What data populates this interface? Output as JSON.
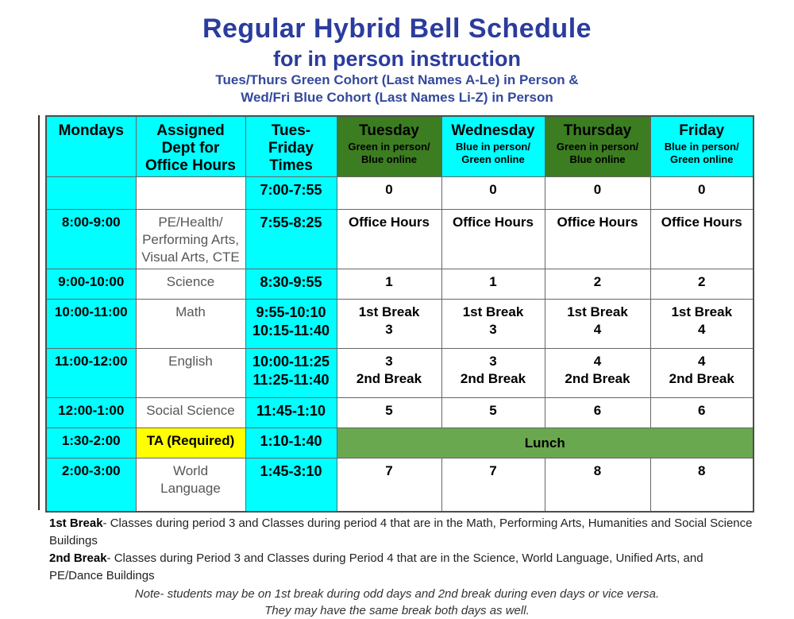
{
  "header": {
    "title": "Regular Hybrid Bell Schedule",
    "subtitle": "for in person instruction",
    "cohort_line1": "Tues/Thurs Green Cohort (Last Names A-Le) in Person &",
    "cohort_line2": "Wed/Fri Blue Cohort (Last Names Li-Z) in Person"
  },
  "colors": {
    "cell_cyan": "#00FFFF",
    "day_header_green": "#3C7D21",
    "lunch_green": "#6AA84F",
    "ta_yellow": "#FFFF00",
    "title_blue": "#2B3C9E",
    "cohort_blue": "#33499B"
  },
  "table": {
    "columns": [
      {
        "title_lines": [
          "Mondays"
        ],
        "subtitle_lines": [],
        "bg": "cyan"
      },
      {
        "title_lines": [
          "Assigned",
          "Dept for",
          "Office Hours"
        ],
        "subtitle_lines": [],
        "bg": "cyan"
      },
      {
        "title_lines": [
          "Tues-",
          "Friday",
          "Times"
        ],
        "subtitle_lines": [],
        "bg": "cyan"
      },
      {
        "title_lines": [
          "Tuesday"
        ],
        "subtitle_lines": [
          "Green in person/",
          "Blue online"
        ],
        "bg": "green"
      },
      {
        "title_lines": [
          "Wednesday"
        ],
        "subtitle_lines": [
          "Blue in person/",
          "Green online"
        ],
        "bg": "cyan"
      },
      {
        "title_lines": [
          "Thursday"
        ],
        "subtitle_lines": [
          "Green in person/",
          "Blue online"
        ],
        "bg": "green"
      },
      {
        "title_lines": [
          "Friday"
        ],
        "subtitle_lines": [
          "Blue in person/",
          "Green online"
        ],
        "bg": "cyan"
      }
    ],
    "rows": [
      {
        "monday": "",
        "dept_lines": [],
        "dept_bg": "white",
        "times_lines": [
          "7:00-7:55"
        ],
        "day_cells": [
          [
            "0"
          ],
          [
            "0"
          ],
          [
            "0"
          ],
          [
            "0"
          ]
        ]
      },
      {
        "monday": "8:00-9:00",
        "dept_lines": [
          "PE/Health/",
          "Performing Arts,",
          "Visual Arts, CTE"
        ],
        "dept_bg": "white",
        "times_lines": [
          "7:55-8:25"
        ],
        "day_cells": [
          [
            "Office Hours"
          ],
          [
            "Office Hours"
          ],
          [
            "Office Hours"
          ],
          [
            "Office Hours"
          ]
        ]
      },
      {
        "monday": "9:00-10:00",
        "dept_lines": [
          "Science"
        ],
        "dept_bg": "white",
        "times_lines": [
          "8:30-9:55"
        ],
        "day_cells": [
          [
            "1"
          ],
          [
            "1"
          ],
          [
            "2"
          ],
          [
            "2"
          ]
        ]
      },
      {
        "monday": "10:00-11:00",
        "dept_lines": [
          "Math"
        ],
        "dept_bg": "white",
        "times_lines": [
          "9:55-10:10",
          "10:15-11:40"
        ],
        "day_cells": [
          [
            "1st Break",
            "3"
          ],
          [
            "1st Break",
            "3"
          ],
          [
            "1st Break",
            "4"
          ],
          [
            "1st Break",
            "4"
          ]
        ]
      },
      {
        "monday": "11:00-12:00",
        "dept_lines": [
          "English"
        ],
        "dept_bg": "white",
        "times_lines": [
          "10:00-11:25",
          "11:25-11:40"
        ],
        "day_cells": [
          [
            "3",
            "2nd Break"
          ],
          [
            "3",
            "2nd Break"
          ],
          [
            "4",
            "2nd Break"
          ],
          [
            "4",
            "2nd Break"
          ]
        ]
      },
      {
        "monday": "12:00-1:00",
        "dept_lines": [
          "Social Science"
        ],
        "dept_bg": "white",
        "times_lines": [
          "11:45-1:10"
        ],
        "day_cells": [
          [
            "5"
          ],
          [
            "5"
          ],
          [
            "6"
          ],
          [
            "6"
          ]
        ]
      },
      {
        "monday": "1:30-2:00",
        "dept_lines": [
          "TA (Required)"
        ],
        "dept_bg": "yellow",
        "dept_bold": true,
        "times_lines": [
          "1:10-1:40"
        ],
        "lunch_label": "Lunch"
      },
      {
        "monday": "2:00-3:00",
        "dept_lines": [
          "World",
          "Language"
        ],
        "dept_bg": "white",
        "times_lines": [
          "1:45-3:10"
        ],
        "day_cells": [
          [
            "7"
          ],
          [
            "7"
          ],
          [
            "8"
          ],
          [
            "8"
          ]
        ]
      }
    ]
  },
  "footnotes": [
    {
      "term": "1st Break",
      "text": "- Classes during period 3 and Classes during period 4 that are in the Math, Performing Arts, Humanities and Social Science Buildings"
    },
    {
      "term": "2nd Break",
      "text": "- Classes during Period 3 and Classes during Period 4 that are in the Science, World Language, Unified Arts, and PE/Dance Buildings"
    }
  ],
  "notes": [
    "Note- students may be on 1st break during odd days and 2nd break during even days or vice versa.",
    "They may have the same break both days as well."
  ]
}
